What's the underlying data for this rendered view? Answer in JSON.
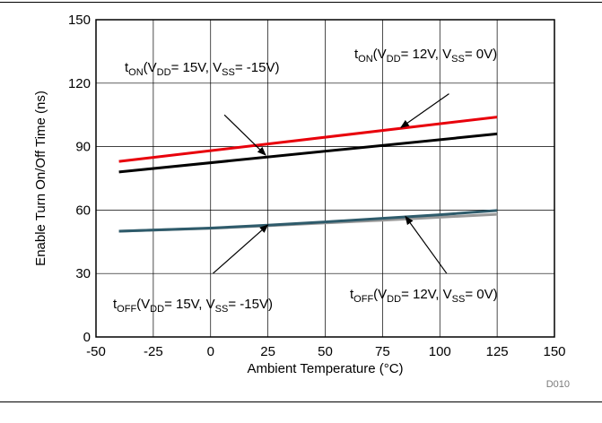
{
  "chart_data": {
    "type": "line",
    "xlabel": "Ambient Temperature (°C)",
    "ylabel": "Enable Turn On/Off Time (ns)",
    "xlim": [
      -50,
      150
    ],
    "ylim": [
      0,
      150
    ],
    "x_ticks": [
      -50,
      -25,
      0,
      25,
      50,
      75,
      100,
      125,
      150
    ],
    "y_ticks": [
      0,
      30,
      60,
      90,
      120,
      150
    ],
    "grid": true,
    "figure_id": "D010",
    "series": [
      {
        "color": "#e8000b",
        "x": [
          -40,
          125
        ],
        "y": [
          83,
          104
        ]
      },
      {
        "color": "#000000",
        "x": [
          -40,
          125
        ],
        "y": [
          78,
          96
        ]
      },
      {
        "color": "#9a9a9a",
        "x": [
          -40,
          0,
          25,
          50,
          75,
          100,
          125
        ],
        "y": [
          50,
          51.4,
          52.6,
          53.9,
          55.2,
          56.6,
          58
        ]
      },
      {
        "color": "#2e5b6b",
        "x": [
          -40,
          0,
          25,
          50,
          75,
          100,
          125
        ],
        "y": [
          50,
          51.5,
          52.9,
          54.4,
          56.1,
          57.8,
          59.8
        ]
      }
    ],
    "annotations": [
      {
        "parts": [
          [
            "t",
            ""
          ],
          [
            "ON",
            "sub"
          ],
          [
            "(V",
            ""
          ],
          [
            "DD",
            "sub"
          ],
          [
            "= 15V, V",
            ""
          ],
          [
            "SS",
            "sub"
          ],
          [
            "= -15V)",
            ""
          ]
        ],
        "arrow": {
          "from": [
            6,
            105
          ],
          "to": [
            24,
            86
          ]
        }
      },
      {
        "parts": [
          [
            "t",
            ""
          ],
          [
            "ON",
            "sub"
          ],
          [
            "(V",
            ""
          ],
          [
            "DD",
            "sub"
          ],
          [
            "= 12V, V",
            ""
          ],
          [
            "SS",
            "sub"
          ],
          [
            "= 0V)",
            ""
          ]
        ],
        "arrow": {
          "from": [
            104,
            115
          ],
          "to": [
            83,
            99
          ]
        }
      },
      {
        "parts": [
          [
            "t",
            ""
          ],
          [
            "OFF",
            "sub"
          ],
          [
            "(V",
            ""
          ],
          [
            "DD",
            "sub"
          ],
          [
            "= 15V, V",
            ""
          ],
          [
            "SS",
            "sub"
          ],
          [
            "= -15V)",
            ""
          ]
        ],
        "arrow": {
          "from": [
            1,
            30
          ],
          "to": [
            25,
            53
          ]
        }
      },
      {
        "parts": [
          [
            "t",
            ""
          ],
          [
            "OFF",
            "sub"
          ],
          [
            "(V",
            ""
          ],
          [
            "DD",
            "sub"
          ],
          [
            "= 12V, V",
            ""
          ],
          [
            "SS",
            "sub"
          ],
          [
            "= 0V)",
            ""
          ]
        ],
        "arrow": {
          "from": [
            103,
            30
          ],
          "to": [
            85,
            57
          ]
        }
      }
    ]
  }
}
